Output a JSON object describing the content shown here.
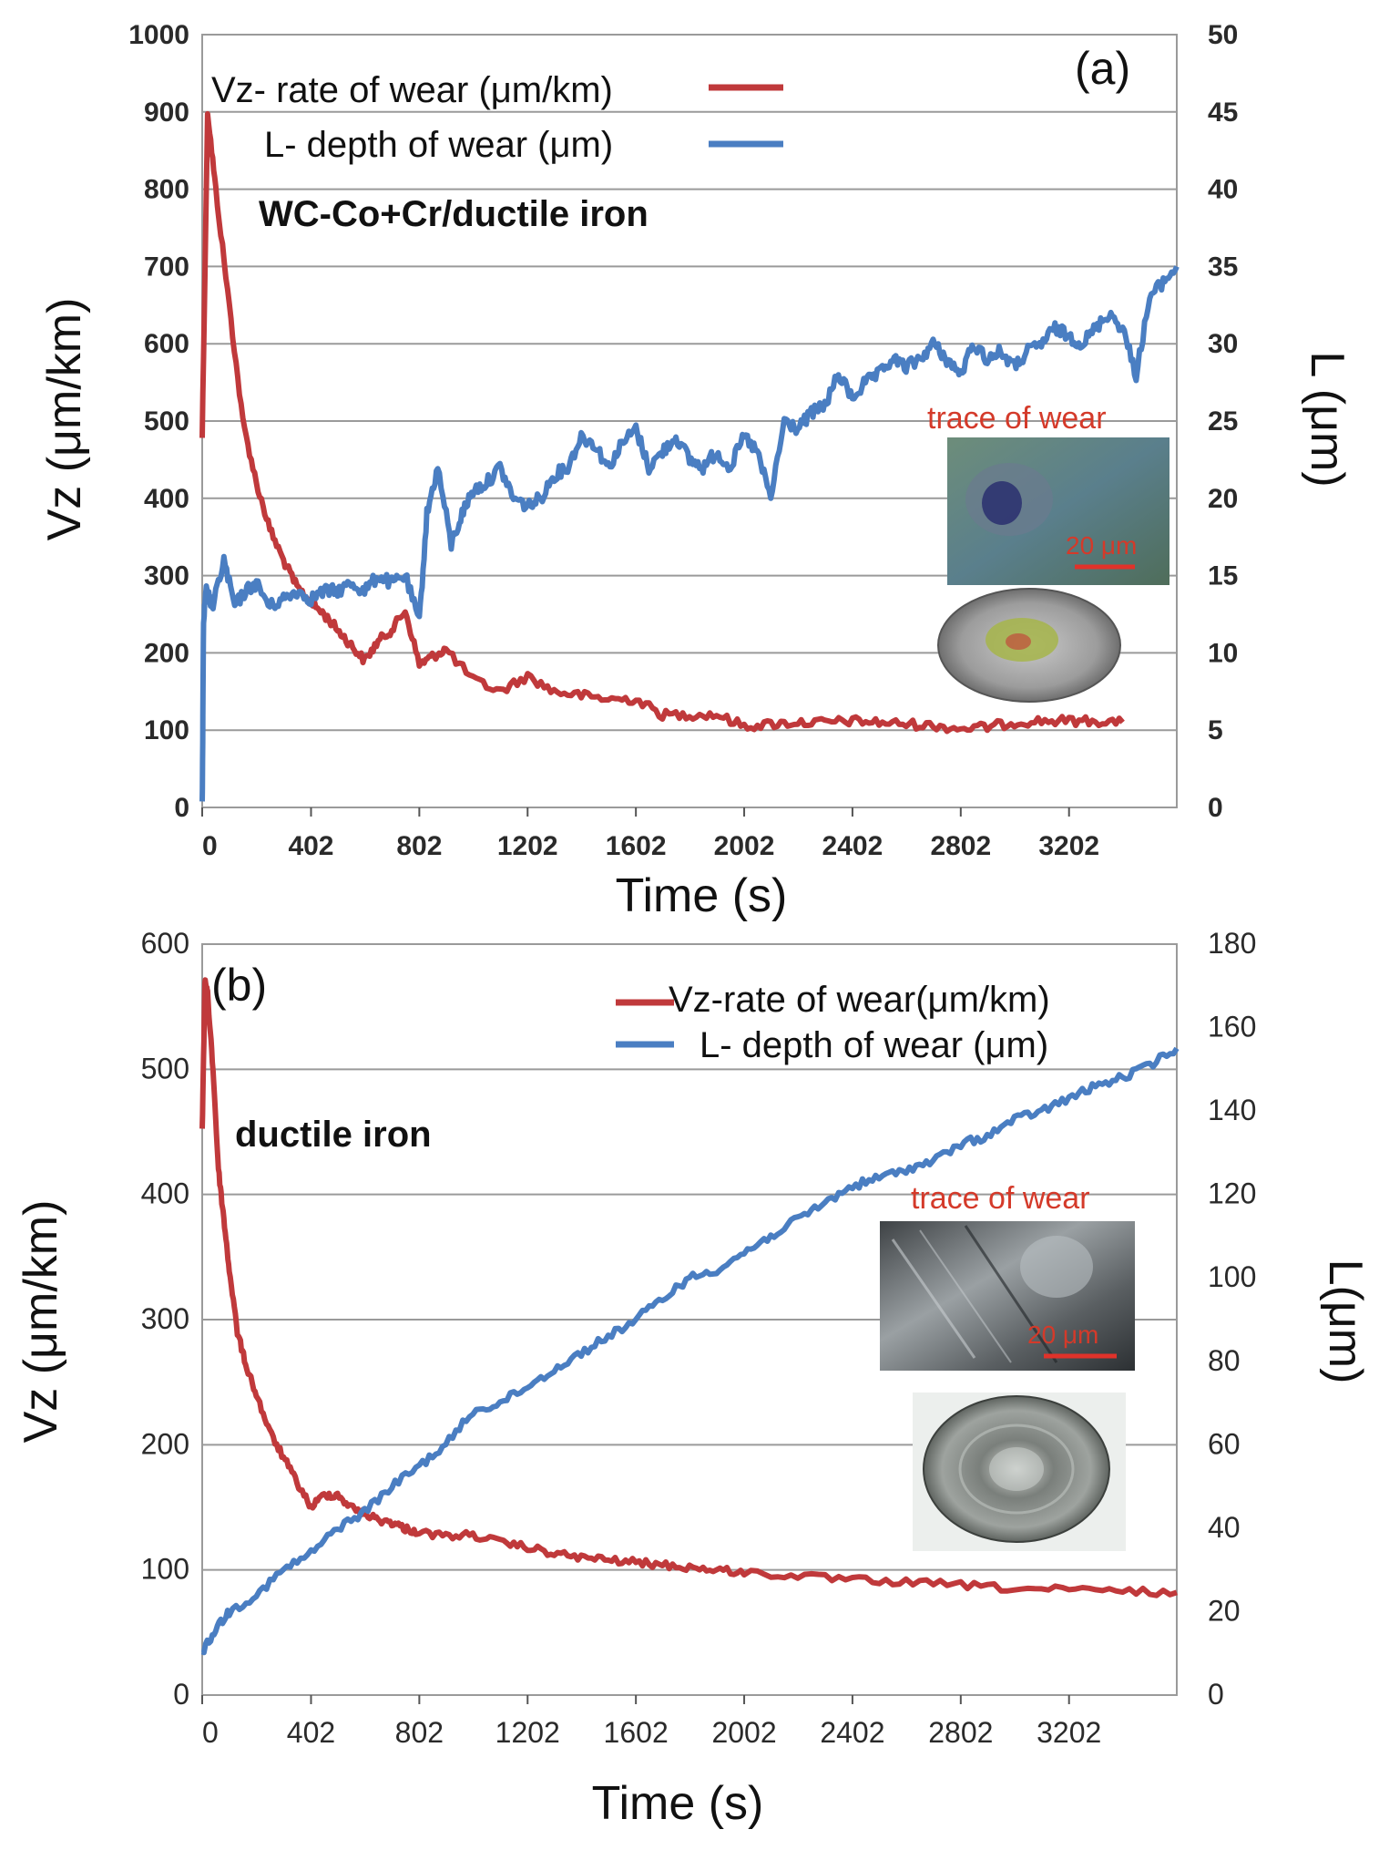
{
  "chart_data": [
    {
      "type": "line",
      "panel_label": "(a)",
      "material": "WC-Co+Cr/ductile iron",
      "xlabel": "Time (s)",
      "ylabel": "Vz (μm/km)",
      "y2label": "L (μm)",
      "x_ticks": [
        "0",
        "402",
        "802",
        "1202",
        "1602",
        "2002",
        "2402",
        "2802",
        "3202"
      ],
      "x_tick_values": [
        0,
        402,
        802,
        1202,
        1602,
        2002,
        2402,
        2802,
        3202
      ],
      "xlim": [
        0,
        3600
      ],
      "ylim": [
        0,
        1000
      ],
      "y_ticks": [
        "0",
        "100",
        "200",
        "300",
        "400",
        "500",
        "600",
        "700",
        "800",
        "900",
        "1000"
      ],
      "y2lim": [
        0,
        50
      ],
      "y2_ticks": [
        "0",
        "5",
        "10",
        "15",
        "20",
        "25",
        "30",
        "35",
        "40",
        "45",
        "50"
      ],
      "legend": [
        "Vz- rate of wear (μm/km)",
        "L- depth of wear (μm)"
      ],
      "inset_label": "trace of wear",
      "scale_bar": "20 μm",
      "series": [
        {
          "name": "Vz- rate of wear (μm/km)",
          "axis": "left",
          "color": "#c0393b",
          "x": [
            0,
            20,
            50,
            100,
            150,
            200,
            250,
            300,
            350,
            402,
            450,
            500,
            550,
            600,
            650,
            700,
            750,
            802,
            850,
            900,
            1000,
            1100,
            1202,
            1300,
            1400,
            1500,
            1602,
            1700,
            1800,
            1900,
            2002,
            2100,
            2200,
            2300,
            2402,
            2500,
            2600,
            2700,
            2802,
            2900,
            3000,
            3100,
            3202,
            3300,
            3400
          ],
          "values": [
            480,
            900,
            800,
            650,
            500,
            420,
            360,
            320,
            285,
            265,
            250,
            230,
            210,
            190,
            215,
            230,
            255,
            185,
            195,
            205,
            165,
            150,
            170,
            150,
            145,
            140,
            140,
            120,
            120,
            120,
            105,
            108,
            110,
            110,
            112,
            110,
            108,
            106,
            102,
            104,
            110,
            112,
            112,
            112,
            110
          ]
        },
        {
          "name": "L- depth of wear (μm)",
          "axis": "right",
          "color": "#4a7ec2",
          "x": [
            0,
            5,
            15,
            40,
            80,
            120,
            160,
            200,
            250,
            300,
            350,
            402,
            450,
            500,
            550,
            600,
            650,
            700,
            750,
            802,
            830,
            870,
            920,
            960,
            1000,
            1050,
            1100,
            1150,
            1202,
            1250,
            1300,
            1350,
            1400,
            1450,
            1500,
            1550,
            1602,
            1650,
            1700,
            1750,
            1800,
            1850,
            1900,
            1950,
            2002,
            2050,
            2100,
            2150,
            2200,
            2250,
            2300,
            2350,
            2402,
            2450,
            2500,
            2550,
            2600,
            2650,
            2700,
            2750,
            2802,
            2850,
            2900,
            2950,
            3000,
            3050,
            3100,
            3150,
            3202,
            3250,
            3300,
            3350,
            3400,
            3450,
            3500,
            3550,
            3600
          ],
          "values": [
            0,
            12,
            14,
            13,
            16,
            13,
            14,
            14.5,
            13,
            13.5,
            14,
            13.5,
            14,
            14,
            14.5,
            14,
            15,
            14.5,
            15,
            12,
            19,
            22,
            17,
            19,
            20.5,
            21,
            22,
            20,
            19.5,
            20,
            21.5,
            22,
            24,
            23.5,
            22,
            23.5,
            24.5,
            22,
            23,
            24,
            22.5,
            22,
            23,
            22,
            24,
            23,
            20,
            25,
            24.5,
            25.5,
            26,
            28,
            26.5,
            27.5,
            28,
            29,
            28.5,
            29,
            30,
            29,
            28,
            30,
            29,
            29.5,
            28.5,
            29.5,
            30,
            31,
            30.5,
            30,
            31,
            32,
            31,
            28,
            33,
            34,
            35
          ]
        }
      ]
    },
    {
      "type": "line",
      "panel_label": "(b)",
      "material": "ductile iron",
      "xlabel": "Time (s)",
      "ylabel": "Vz (μm/km)",
      "y2label": "L(μm)",
      "x_ticks": [
        "0",
        "402",
        "802",
        "1202",
        "1602",
        "2002",
        "2402",
        "2802",
        "3202"
      ],
      "x_tick_values": [
        0,
        402,
        802,
        1202,
        1602,
        2002,
        2402,
        2802,
        3202
      ],
      "xlim": [
        0,
        3600
      ],
      "ylim": [
        0,
        600
      ],
      "y_ticks": [
        "0",
        "100",
        "200",
        "300",
        "400",
        "500",
        "600"
      ],
      "y2lim": [
        0,
        180
      ],
      "y2_ticks": [
        "0",
        "20",
        "40",
        "60",
        "80",
        "100",
        "120",
        "140",
        "160",
        "180"
      ],
      "legend": [
        "Vz-rate of wear(μm/km)",
        "L- depth of wear (μm)"
      ],
      "inset_label": "trace of wear",
      "scale_bar": "20 μm",
      "series": [
        {
          "name": "Vz-rate of wear(μm/km)",
          "axis": "left",
          "color": "#c0393b",
          "x": [
            0,
            10,
            20,
            40,
            60,
            80,
            100,
            130,
            160,
            200,
            250,
            300,
            350,
            402,
            450,
            500,
            550,
            600,
            650,
            700,
            750,
            802,
            900,
            1000,
            1100,
            1202,
            1300,
            1400,
            1500,
            1602,
            1700,
            1800,
            1900,
            2002,
            2200,
            2402,
            2600,
            2802,
            3000,
            3202,
            3400,
            3600
          ],
          "values": [
            450,
            570,
            560,
            500,
            420,
            380,
            340,
            290,
            265,
            240,
            210,
            190,
            170,
            150,
            160,
            160,
            150,
            145,
            140,
            138,
            133,
            130,
            127,
            128,
            122,
            118,
            113,
            110,
            108,
            106,
            104,
            102,
            100,
            98,
            95,
            92,
            90,
            88,
            85,
            84,
            83,
            82
          ]
        },
        {
          "name": "L- depth of wear (μm)",
          "axis": "right",
          "color": "#4a7ec2",
          "x": [
            0,
            50,
            100,
            200,
            300,
            402,
            500,
            600,
            700,
            802,
            900,
            1000,
            1100,
            1202,
            1300,
            1400,
            1500,
            1602,
            1700,
            1800,
            1900,
            2002,
            2100,
            2200,
            2300,
            2402,
            2500,
            2600,
            2700,
            2802,
            2900,
            3000,
            3100,
            3202,
            3300,
            3400,
            3500,
            3600
          ],
          "values": [
            10,
            16,
            20,
            24,
            30,
            34,
            40,
            44,
            50,
            55,
            60,
            68,
            70,
            74,
            78,
            82,
            86,
            90,
            95,
            100,
            102,
            106,
            110,
            114,
            118,
            122,
            124,
            126,
            128,
            132,
            134,
            138,
            140,
            143,
            146,
            148,
            151,
            155
          ]
        }
      ]
    }
  ]
}
